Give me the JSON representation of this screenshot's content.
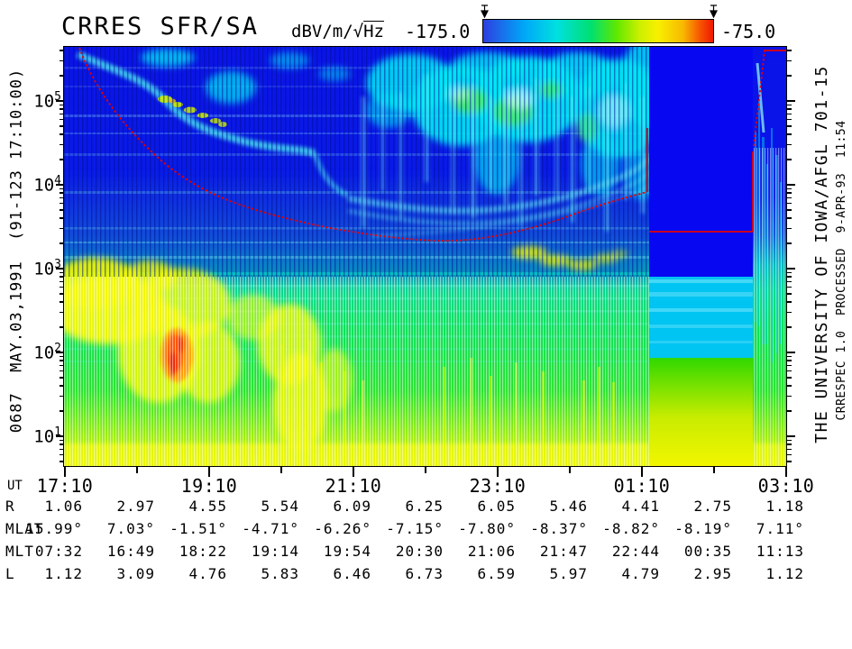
{
  "header": {
    "title": "CRRES SFR/SA",
    "units_prefix": "dBV/m/",
    "units_sqrt": "√",
    "units_hz": "Hz",
    "scale_min": "-175.0",
    "scale_max": "-75.0"
  },
  "colorbar": {
    "min": -175.0,
    "max": -75.0,
    "gradient": [
      "#2e3fe0",
      "#00a8f8",
      "#00e0e0",
      "#00e070",
      "#60e800",
      "#f8f000",
      "#f8b800",
      "#ee1800"
    ]
  },
  "left_margin_label": "0687  MAY.03,1991  (91-123 17:10:00)",
  "right_margin": {
    "line1": "THE UNIVERSITY OF IOWA/AFGL 701-15",
    "line2": "CRRESPEC 1.0  PROCESSED  9-APR-93  11:54"
  },
  "y_axis": {
    "scale": "log",
    "labels": [
      {
        "base": "10",
        "exp": "5"
      },
      {
        "base": "10",
        "exp": "4"
      },
      {
        "base": "10",
        "exp": "3"
      },
      {
        "base": "10",
        "exp": "2"
      },
      {
        "base": "10",
        "exp": "1"
      }
    ]
  },
  "x_axis": {
    "label": "UT",
    "ticks": [
      "17:10",
      "19:10",
      "21:10",
      "23:10",
      "01:10",
      "03:10"
    ]
  },
  "ephemeris": {
    "rows": [
      {
        "label": "R",
        "values": [
          "1.06",
          "2.97",
          "4.55",
          "5.54",
          "6.09",
          "6.25",
          "6.05",
          "5.46",
          "4.41",
          "2.75",
          "1.18"
        ]
      },
      {
        "label": "MLAT",
        "values": [
          "15.99°",
          "7.03°",
          "-1.51°",
          "-4.71°",
          "-6.26°",
          "-7.15°",
          "-7.80°",
          "-8.37°",
          "-8.82°",
          "-8.19°",
          "7.11°"
        ]
      },
      {
        "label": "MLT",
        "values": [
          "07:32",
          "16:49",
          "18:22",
          "19:14",
          "19:54",
          "20:30",
          "21:06",
          "21:47",
          "22:44",
          "00:35",
          "11:13"
        ]
      },
      {
        "label": "L",
        "values": [
          "1.12",
          "3.09",
          "4.76",
          "5.83",
          "6.46",
          "6.73",
          "6.59",
          "5.97",
          "4.79",
          "2.95",
          "1.12"
        ]
      }
    ]
  },
  "palette": {
    "background_top_blue": "#0a13e8",
    "data_gap_blue": "#0707f2",
    "data_gap_cyan": "#00c4f2",
    "green": "#00e058",
    "yellow": "#f0f800",
    "hot_orange": "#ff4800",
    "red_trace": "#e60000",
    "cyan_noise": "#00e8f4"
  },
  "chart_data": {
    "type": "heatmap",
    "title": "CRRES SFR/SA",
    "value_label": "dBV/m/√Hz",
    "value_range": [
      -175.0,
      -75.0
    ],
    "legend_position": "top",
    "grid": false,
    "x": {
      "label": "UT",
      "tick_labels": [
        "17:10",
        "19:10",
        "21:10",
        "23:10",
        "01:10",
        "03:10"
      ],
      "start": "17:10",
      "end": "03:10",
      "minor_tick_interval": "1 hour"
    },
    "y": {
      "scale": "log",
      "tick_labels": [
        "10^5",
        "10^4",
        "10^3",
        "10^2",
        "10^1"
      ]
    },
    "data_gap_ut_approx": [
      "01:16",
      "02:42"
    ],
    "red_trace_points_ut_hz_approx": [
      [
        "17:22",
        400000
      ],
      [
        "17:45",
        100000
      ],
      [
        "18:20",
        20000
      ],
      [
        "19:10",
        7000
      ],
      [
        "20:10",
        3800
      ],
      [
        "21:10",
        2800
      ],
      [
        "21:40",
        2600
      ],
      [
        "22:30",
        3200
      ],
      [
        "23:30",
        4500
      ],
      [
        "00:30",
        5800
      ],
      [
        "01:16",
        7500
      ],
      [
        "02:40",
        29000
      ],
      [
        "02:50",
        400000
      ]
    ],
    "regions_description": [
      "upper half: deep blue background with cyan broadband noise patches near 10^5 Hz",
      "descending cyan emission band with green/yellow speckles from upper-left toward mid frequencies",
      "lower half: green continuum with yellow patches and an orange/red hotspot near 18:30 UT around 10^2 Hz",
      "solid blue data-gap block ~01:16-02:42 UT with cyan band below 10^3 Hz and yellow below 10^2 Hz",
      "yellow intensification strip along bottom edge"
    ],
    "ephemeris_rows": [
      {
        "name": "R",
        "values": [
          1.06,
          2.97,
          4.55,
          5.54,
          6.09,
          6.25,
          6.05,
          5.46,
          4.41,
          2.75,
          1.18
        ]
      },
      {
        "name": "MLAT_deg",
        "values": [
          15.99,
          7.03,
          -1.51,
          -4.71,
          -6.26,
          -7.15,
          -7.8,
          -8.37,
          -8.82,
          -8.19,
          7.11
        ]
      },
      {
        "name": "MLT",
        "values": [
          "07:32",
          "16:49",
          "18:22",
          "19:14",
          "19:54",
          "20:30",
          "21:06",
          "21:47",
          "22:44",
          "00:35",
          "11:13"
        ]
      },
      {
        "name": "L",
        "values": [
          1.12,
          3.09,
          4.76,
          5.83,
          6.46,
          6.73,
          6.59,
          5.97,
          4.79,
          2.95,
          1.12
        ]
      }
    ]
  }
}
